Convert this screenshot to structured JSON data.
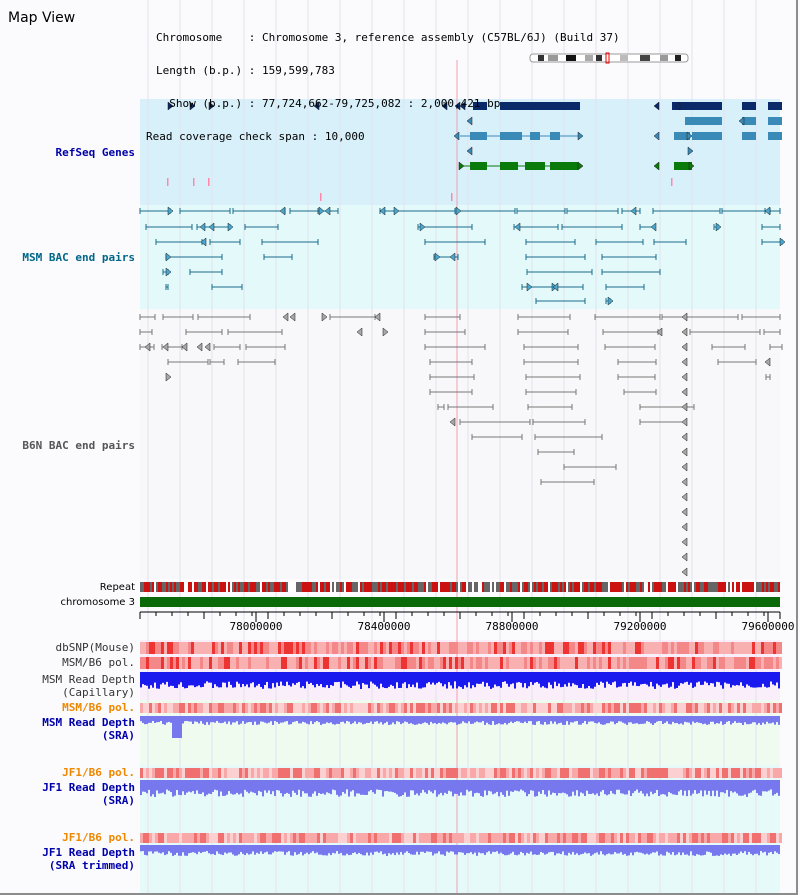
{
  "app": {
    "title": "Map View"
  },
  "header": {
    "chromosome_label": "Chromosome    ",
    "chromosome_value": "Chromosome 3, reference assembly (C57BL/6J) (Build 37)",
    "length_label": "Length (b.p.) ",
    "length_value": "159,599,783",
    "show_label": "  Show (b.p.) ",
    "show_value": "77,724,662-79,725,082 : 2,000,421 bp",
    "coverage_label": "Read coverage check span ",
    "coverage_value": "10,000"
  },
  "tracks": {
    "refseq": "RefSeq Genes",
    "msm_bac": "MSM BAC end pairs",
    "b6n_bac": "B6N BAC end pairs",
    "repeat": "Repeat",
    "chromosome": "chromosome 3",
    "dbsnp": "dbSNP(Mouse)",
    "msm_b6_pol_1": "MSM/B6 pol.",
    "msm_depth_cap": "MSM Read Depth\n(Capillary)",
    "msm_b6_pol_2": "MSM/B6 pol.",
    "msm_depth_sra": "MSM Read Depth\n(SRA)",
    "jf1_b6_pol_1": "JF1/B6 pol.",
    "jf1_depth_sra": "JF1 Read Depth\n(SRA)",
    "jf1_b6_pol_2": "JF1/B6 pol.",
    "jf1_depth_trim": "JF1 Read Depth\n(SRA trimmed)"
  },
  "axis": {
    "ticks": [
      "78000000",
      "78400000",
      "78800000",
      "79200000",
      "79600000"
    ]
  },
  "colors": {
    "refseq_bg": "#d8f0fa",
    "msm_bg": "#e4fafa",
    "gene_navy": "#0a2a6a",
    "gene_blue": "#3a8ab8",
    "gene_green": "#0a7a0a",
    "msm_line": "#1a6a8a",
    "b6n_line": "#777777",
    "repeat_red": "#cc1111",
    "chromosome_green": "#0a6a0a",
    "depth_blue": "#1a1aee",
    "depth_light": "#7777ee",
    "label_blue": "#0000aa",
    "label_orange": "#ee8800",
    "label_teal": "#006688"
  }
}
